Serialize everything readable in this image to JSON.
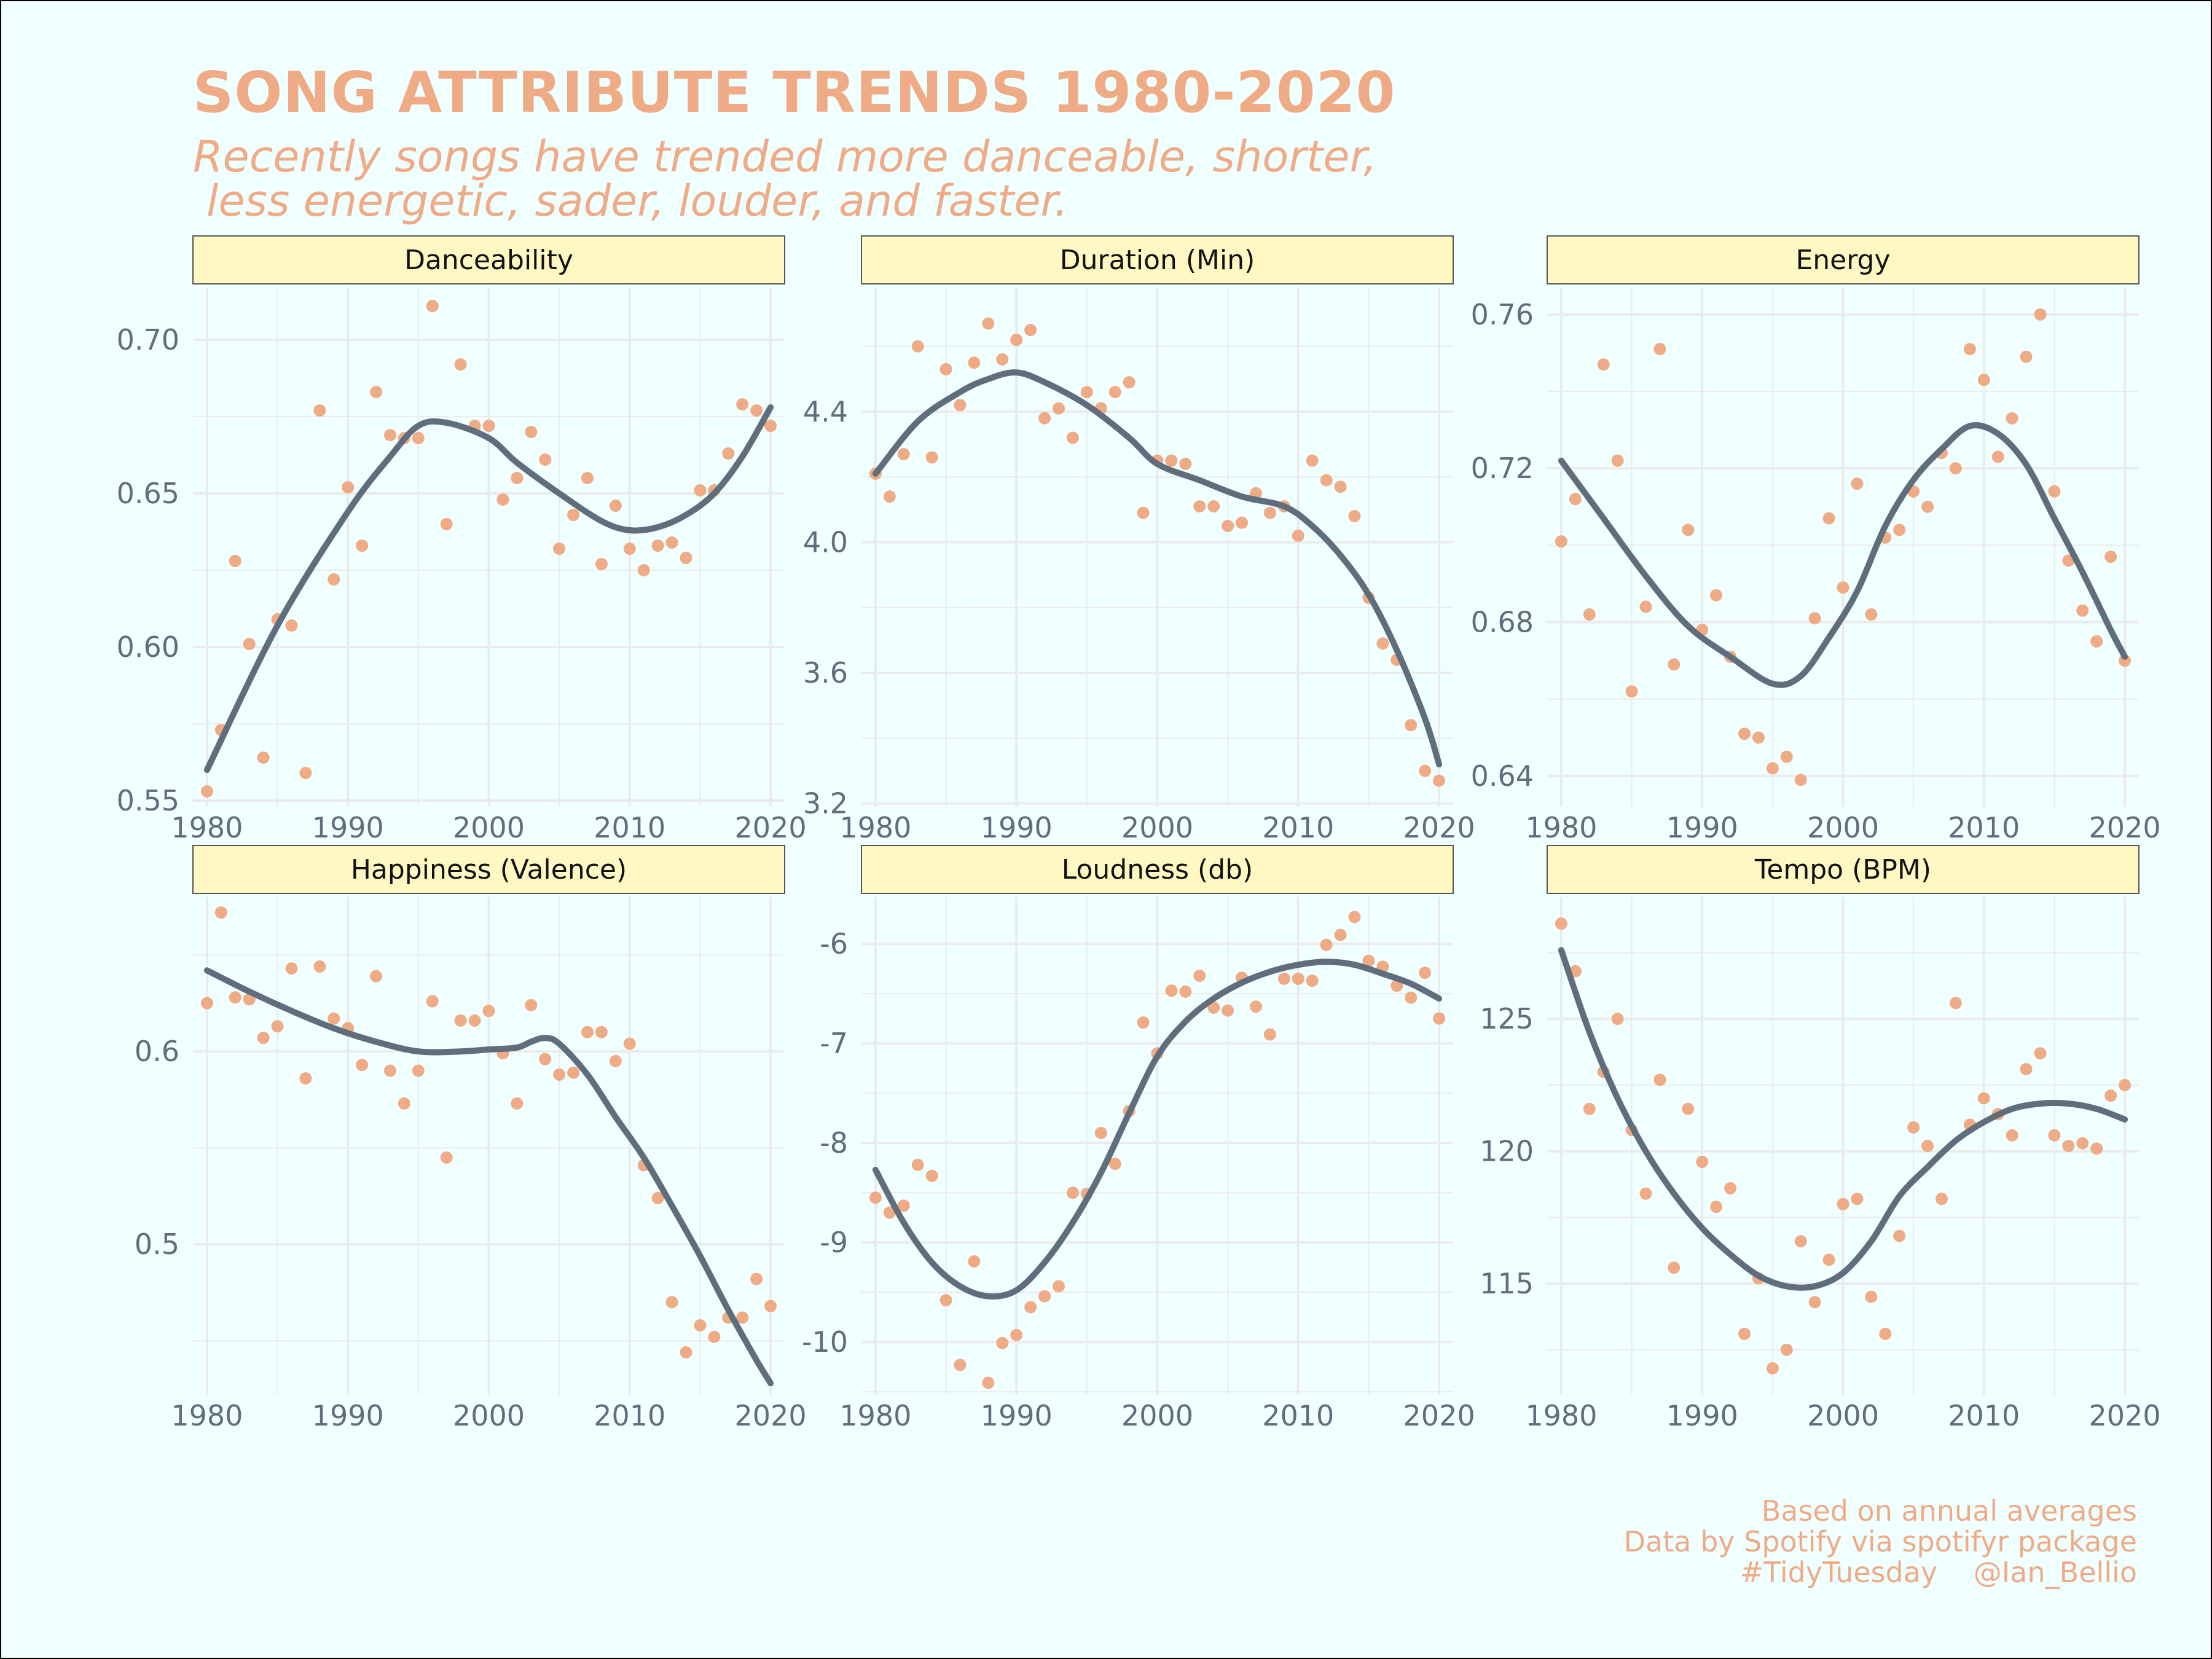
{
  "title": "SONG ATTRIBUTE TRENDS 1980-2020",
  "subtitle_line1": "Recently songs have trended more danceable, shorter,",
  "subtitle_line2": "less energetic, sader, louder, and faster.",
  "caption": {
    "line1": "Based on annual averages",
    "line2": "Data by Spotify via spotifyr package",
    "line3": "#TidyTuesday    @Ian_Bellio"
  },
  "colors": {
    "background": "#f0ffff",
    "accent": "#efab85",
    "point": "#efab85",
    "trend_line": "#5f6e7c",
    "strip": "#fff8c2",
    "grid": "#ebebeb",
    "axis_text": "#5f6e7c"
  },
  "chart_data": [
    {
      "type": "scatter",
      "title": "Danceability",
      "x": [
        1980,
        1981,
        1982,
        1983,
        1984,
        1985,
        1986,
        1987,
        1988,
        1989,
        1990,
        1991,
        1992,
        1993,
        1994,
        1995,
        1996,
        1997,
        1998,
        1999,
        2000,
        2001,
        2002,
        2003,
        2004,
        2005,
        2006,
        2007,
        2008,
        2009,
        2010,
        2011,
        2012,
        2013,
        2014,
        2015,
        2016,
        2017,
        2018,
        2019,
        2020
      ],
      "y": [
        0.553,
        0.573,
        0.628,
        0.601,
        0.564,
        0.609,
        0.607,
        0.559,
        0.677,
        0.622,
        0.652,
        0.633,
        0.683,
        0.669,
        0.668,
        0.668,
        0.711,
        0.64,
        0.692,
        0.672,
        0.672,
        0.648,
        0.655,
        0.67,
        0.661,
        0.632,
        0.643,
        0.655,
        0.627,
        0.646,
        0.632,
        0.625,
        0.633,
        0.634,
        0.629,
        0.651,
        0.651,
        0.663,
        0.679,
        0.677,
        0.672
      ],
      "trend": [
        [
          1980,
          0.56
        ],
        [
          1985,
          0.607
        ],
        [
          1990,
          0.644
        ],
        [
          1993,
          0.662
        ],
        [
          1995,
          0.672
        ],
        [
          1997,
          0.673
        ],
        [
          2000,
          0.668
        ],
        [
          2002,
          0.66
        ],
        [
          2005,
          0.65
        ],
        [
          2008,
          0.641
        ],
        [
          2010,
          0.638
        ],
        [
          2012,
          0.639
        ],
        [
          2014,
          0.643
        ],
        [
          2016,
          0.65
        ],
        [
          2018,
          0.662
        ],
        [
          2020,
          0.678
        ]
      ],
      "xlim": [
        1979,
        2021
      ],
      "ylim": [
        0.548,
        0.717
      ],
      "xticks": [
        1980,
        1990,
        2000,
        2010,
        2020
      ],
      "yticks": [
        0.55,
        0.6,
        0.65,
        0.7
      ],
      "ytick_labels": [
        "0.55",
        "0.60",
        "0.65",
        "0.70"
      ]
    },
    {
      "type": "scatter",
      "title": "Duration (Min)",
      "x": [
        1980,
        1981,
        1982,
        1983,
        1984,
        1985,
        1986,
        1987,
        1988,
        1989,
        1990,
        1991,
        1992,
        1993,
        1994,
        1995,
        1996,
        1997,
        1998,
        1999,
        2000,
        2001,
        2002,
        2003,
        2004,
        2005,
        2006,
        2007,
        2008,
        2009,
        2010,
        2011,
        2012,
        2013,
        2014,
        2015,
        2016,
        2017,
        2018,
        2019,
        2020
      ],
      "y": [
        4.21,
        4.14,
        4.27,
        4.6,
        4.26,
        4.53,
        4.42,
        4.55,
        4.67,
        4.56,
        4.62,
        4.65,
        4.38,
        4.41,
        4.32,
        4.46,
        4.41,
        4.46,
        4.49,
        4.09,
        4.25,
        4.25,
        4.24,
        4.11,
        4.11,
        4.05,
        4.06,
        4.15,
        4.09,
        4.11,
        4.02,
        4.25,
        4.19,
        4.17,
        4.08,
        3.83,
        3.69,
        3.64,
        3.44,
        3.3,
        3.27
      ],
      "trend": [
        [
          1980,
          4.21
        ],
        [
          1983,
          4.37
        ],
        [
          1986,
          4.46
        ],
        [
          1988,
          4.5
        ],
        [
          1990,
          4.52
        ],
        [
          1992,
          4.49
        ],
        [
          1995,
          4.42
        ],
        [
          1998,
          4.32
        ],
        [
          2000,
          4.24
        ],
        [
          2003,
          4.19
        ],
        [
          2006,
          4.14
        ],
        [
          2009,
          4.11
        ],
        [
          2011,
          4.05
        ],
        [
          2013,
          3.96
        ],
        [
          2015,
          3.84
        ],
        [
          2017,
          3.67
        ],
        [
          2019,
          3.46
        ],
        [
          2020,
          3.32
        ]
      ],
      "xlim": [
        1979,
        2021
      ],
      "ylim": [
        3.19,
        4.78
      ],
      "xticks": [
        1980,
        1990,
        2000,
        2010,
        2020
      ],
      "yticks": [
        3.2,
        3.6,
        4.0,
        4.4
      ],
      "ytick_labels": [
        "3.2",
        "3.6",
        "4.0",
        "4.4"
      ]
    },
    {
      "type": "scatter",
      "title": "Energy",
      "x": [
        1980,
        1981,
        1982,
        1983,
        1984,
        1985,
        1986,
        1987,
        1988,
        1989,
        1990,
        1991,
        1992,
        1993,
        1994,
        1995,
        1996,
        1997,
        1998,
        1999,
        2000,
        2001,
        2002,
        2003,
        2004,
        2005,
        2006,
        2007,
        2008,
        2009,
        2010,
        2011,
        2012,
        2013,
        2014,
        2015,
        2016,
        2017,
        2018,
        2019,
        2020
      ],
      "y": [
        0.701,
        0.712,
        0.682,
        0.747,
        0.722,
        0.662,
        0.684,
        0.751,
        0.669,
        0.704,
        0.678,
        0.687,
        0.671,
        0.651,
        0.65,
        0.642,
        0.645,
        0.639,
        0.681,
        0.707,
        0.689,
        0.716,
        0.682,
        0.702,
        0.704,
        0.714,
        0.71,
        0.724,
        0.72,
        0.751,
        0.743,
        0.723,
        0.733,
        0.749,
        0.76,
        0.714,
        0.696,
        0.683,
        0.675,
        0.697,
        0.67
      ],
      "trend": [
        [
          1980,
          0.722
        ],
        [
          1983,
          0.707
        ],
        [
          1986,
          0.692
        ],
        [
          1989,
          0.679
        ],
        [
          1992,
          0.671
        ],
        [
          1995,
          0.664
        ],
        [
          1997,
          0.666
        ],
        [
          1999,
          0.676
        ],
        [
          2001,
          0.688
        ],
        [
          2003,
          0.705
        ],
        [
          2005,
          0.717
        ],
        [
          2007,
          0.725
        ],
        [
          2009,
          0.731
        ],
        [
          2011,
          0.729
        ],
        [
          2013,
          0.721
        ],
        [
          2015,
          0.707
        ],
        [
          2017,
          0.693
        ],
        [
          2019,
          0.678
        ],
        [
          2020,
          0.671
        ]
      ],
      "xlim": [
        1979,
        2021
      ],
      "ylim": [
        0.632,
        0.767
      ],
      "xticks": [
        1980,
        1990,
        2000,
        2010,
        2020
      ],
      "yticks": [
        0.64,
        0.68,
        0.72,
        0.76
      ],
      "ytick_labels": [
        "0.64",
        "0.68",
        "0.72",
        "0.76"
      ]
    },
    {
      "type": "scatter",
      "title": "Happiness (Valence)",
      "x": [
        1980,
        1981,
        1982,
        1983,
        1984,
        1985,
        1986,
        1987,
        1988,
        1989,
        1990,
        1991,
        1992,
        1993,
        1994,
        1995,
        1996,
        1997,
        1998,
        1999,
        2000,
        2001,
        2002,
        2003,
        2004,
        2005,
        2006,
        2007,
        2008,
        2009,
        2010,
        2011,
        2012,
        2013,
        2014,
        2015,
        2016,
        2017,
        2018,
        2019,
        2020
      ],
      "y": [
        0.625,
        0.672,
        0.628,
        0.627,
        0.607,
        0.613,
        0.643,
        0.586,
        0.644,
        0.617,
        0.612,
        0.593,
        0.639,
        0.59,
        0.573,
        0.59,
        0.626,
        0.545,
        0.616,
        0.616,
        0.621,
        0.599,
        0.573,
        0.624,
        0.596,
        0.588,
        0.589,
        0.61,
        0.61,
        0.595,
        0.604,
        0.541,
        0.524,
        0.47,
        0.444,
        0.458,
        0.452,
        0.462,
        0.462,
        0.482,
        0.468
      ],
      "trend": [
        [
          1980,
          0.642
        ],
        [
          1983,
          0.631
        ],
        [
          1986,
          0.621
        ],
        [
          1989,
          0.612
        ],
        [
          1992,
          0.605
        ],
        [
          1995,
          0.6
        ],
        [
          1998,
          0.6
        ],
        [
          2000,
          0.601
        ],
        [
          2002,
          0.602
        ],
        [
          2003,
          0.605
        ],
        [
          2004,
          0.607
        ],
        [
          2005,
          0.604
        ],
        [
          2007,
          0.588
        ],
        [
          2009,
          0.566
        ],
        [
          2011,
          0.545
        ],
        [
          2013,
          0.52
        ],
        [
          2015,
          0.494
        ],
        [
          2017,
          0.466
        ],
        [
          2019,
          0.44
        ],
        [
          2020,
          0.428
        ]
      ],
      "xlim": [
        1979,
        2021
      ],
      "ylim": [
        0.422,
        0.68
      ],
      "xticks": [
        1980,
        1990,
        2000,
        2010,
        2020
      ],
      "yticks": [
        0.5,
        0.6
      ],
      "ytick_labels": [
        "0.5",
        "0.6"
      ]
    },
    {
      "type": "scatter",
      "title": "Loudness (db)",
      "x": [
        1980,
        1981,
        1982,
        1983,
        1984,
        1985,
        1986,
        1987,
        1988,
        1989,
        1990,
        1991,
        1992,
        1993,
        1994,
        1995,
        1996,
        1997,
        1998,
        1999,
        2000,
        2001,
        2002,
        2003,
        2004,
        2005,
        2006,
        2007,
        2008,
        2009,
        2010,
        2011,
        2012,
        2013,
        2014,
        2015,
        2016,
        2017,
        2018,
        2019,
        2020
      ],
      "y": [
        -8.55,
        -8.7,
        -8.63,
        -8.22,
        -8.33,
        -9.58,
        -10.23,
        -9.19,
        -10.41,
        -10.01,
        -9.93,
        -9.65,
        -9.54,
        -9.44,
        -8.5,
        -8.51,
        -7.9,
        -8.21,
        -7.68,
        -6.79,
        -7.1,
        -6.47,
        -6.48,
        -6.32,
        -6.64,
        -6.67,
        -6.34,
        -6.63,
        -6.91,
        -6.35,
        -6.35,
        -6.37,
        -6.01,
        -5.91,
        -5.73,
        -6.17,
        -6.23,
        -6.42,
        -6.54,
        -6.29,
        -6.75
      ],
      "trend": [
        [
          1980,
          -8.27
        ],
        [
          1982,
          -8.8
        ],
        [
          1984,
          -9.2
        ],
        [
          1986,
          -9.44
        ],
        [
          1988,
          -9.54
        ],
        [
          1990,
          -9.48
        ],
        [
          1992,
          -9.2
        ],
        [
          1994,
          -8.8
        ],
        [
          1996,
          -8.3
        ],
        [
          1998,
          -7.7
        ],
        [
          2000,
          -7.13
        ],
        [
          2002,
          -6.78
        ],
        [
          2004,
          -6.55
        ],
        [
          2006,
          -6.39
        ],
        [
          2008,
          -6.28
        ],
        [
          2010,
          -6.21
        ],
        [
          2012,
          -6.18
        ],
        [
          2014,
          -6.21
        ],
        [
          2016,
          -6.3
        ],
        [
          2018,
          -6.4
        ],
        [
          2020,
          -6.55
        ]
      ],
      "xlim": [
        1979,
        2021
      ],
      "ylim": [
        -10.53,
        -5.53
      ],
      "xticks": [
        1980,
        1990,
        2000,
        2010,
        2020
      ],
      "yticks": [
        -10,
        -9,
        -8,
        -7,
        -6
      ],
      "ytick_labels": [
        "-10",
        "-9",
        "-8",
        "-7",
        "-6"
      ]
    },
    {
      "type": "scatter",
      "title": "Tempo (BPM)",
      "x": [
        1980,
        1981,
        1982,
        1983,
        1984,
        1985,
        1986,
        1987,
        1988,
        1989,
        1990,
        1991,
        1992,
        1993,
        1994,
        1995,
        1996,
        1997,
        1998,
        1999,
        2000,
        2001,
        2002,
        2003,
        2004,
        2005,
        2006,
        2007,
        2008,
        2009,
        2010,
        2011,
        2012,
        2013,
        2014,
        2015,
        2016,
        2017,
        2018,
        2019,
        2020
      ],
      "y": [
        128.6,
        126.8,
        121.6,
        123.0,
        125.0,
        120.8,
        118.4,
        122.7,
        115.6,
        121.6,
        119.6,
        117.9,
        118.6,
        113.1,
        115.2,
        111.8,
        112.5,
        116.6,
        114.3,
        115.9,
        118.0,
        118.2,
        114.5,
        113.1,
        116.8,
        120.9,
        120.2,
        118.2,
        125.6,
        121.0,
        122.0,
        121.4,
        120.6,
        123.1,
        123.7,
        120.6,
        120.2,
        120.3,
        120.1,
        122.1,
        122.5
      ],
      "trend": [
        [
          1980,
          127.6
        ],
        [
          1982,
          124.5
        ],
        [
          1984,
          122.0
        ],
        [
          1986,
          120.0
        ],
        [
          1988,
          118.4
        ],
        [
          1990,
          117.1
        ],
        [
          1992,
          116.1
        ],
        [
          1994,
          115.3
        ],
        [
          1996,
          114.9
        ],
        [
          1998,
          114.9
        ],
        [
          2000,
          115.4
        ],
        [
          2002,
          116.6
        ],
        [
          2004,
          118.3
        ],
        [
          2006,
          119.4
        ],
        [
          2008,
          120.4
        ],
        [
          2010,
          121.1
        ],
        [
          2012,
          121.6
        ],
        [
          2014,
          121.8
        ],
        [
          2016,
          121.8
        ],
        [
          2018,
          121.6
        ],
        [
          2020,
          121.2
        ]
      ],
      "xlim": [
        1979,
        2021
      ],
      "ylim": [
        110.8,
        129.6
      ],
      "xticks": [
        1980,
        1990,
        2000,
        2010,
        2020
      ],
      "yticks": [
        115,
        120,
        125
      ],
      "ytick_labels": [
        "115",
        "120",
        "125"
      ]
    }
  ]
}
